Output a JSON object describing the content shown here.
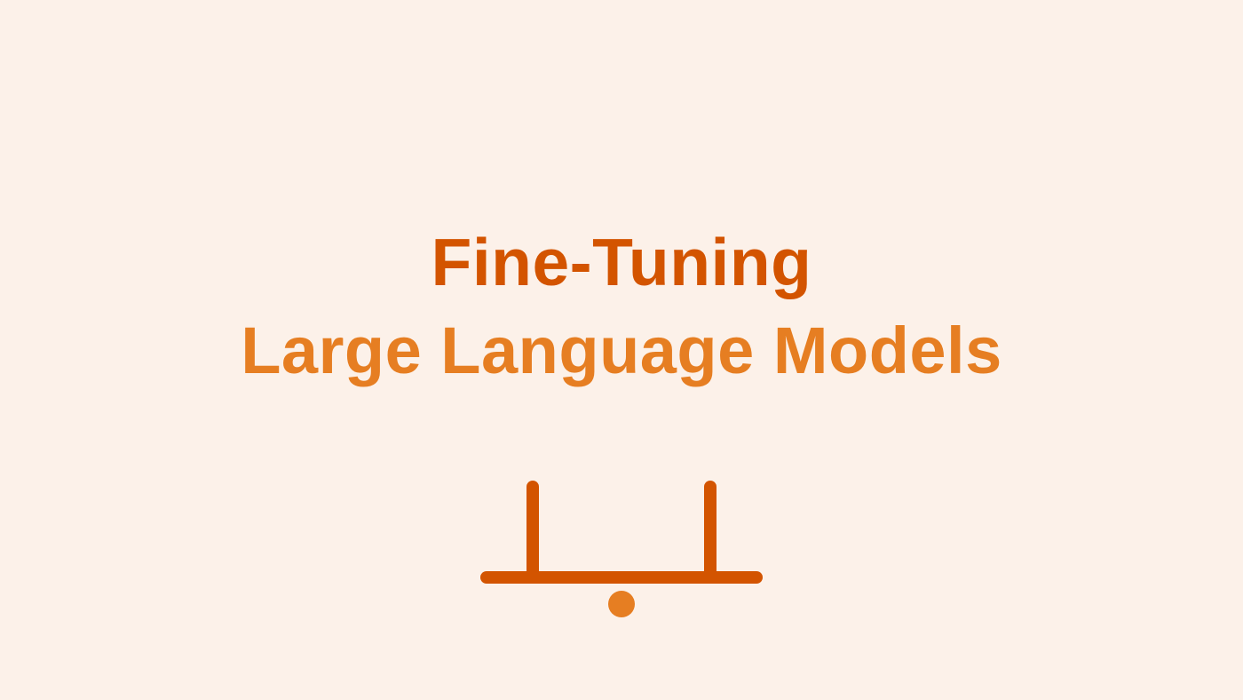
{
  "slide": {
    "title_primary": "Fine-Tuning",
    "title_secondary": "Large Language Models",
    "icon": "balance-scale-icon"
  },
  "colors": {
    "background": "#FCF1E9",
    "primary": "#D35400",
    "secondary": "#E67E22"
  }
}
